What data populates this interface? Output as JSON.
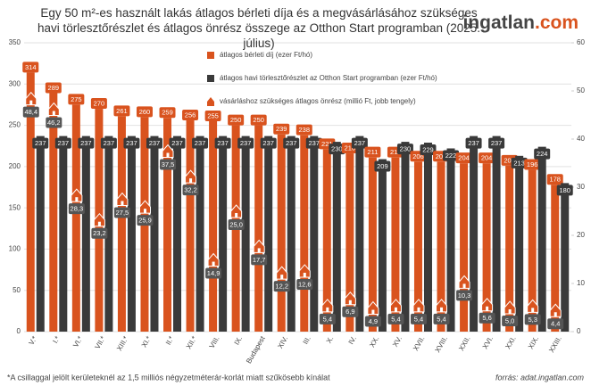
{
  "chart_data": {
    "type": "bar",
    "title": "Egy 50 m²-es használt lakás átlagos bérleti díja és a megvásárlásához szükséges havi törlesztőrészlet és átlagos önrész összege az Otthon Start programban (2025. július)",
    "logo": "ingatlan",
    "logo_suffix": ".com",
    "categories": [
      "V.*",
      "I.*",
      "VI.*",
      "VII.*",
      "XIII.*",
      "XI.*",
      "II.*",
      "XII.*",
      "VIII.",
      "IX.",
      "Budapest",
      "XIV.",
      "III.",
      "X.",
      "IV.",
      "XX.",
      "XV.",
      "XVII.",
      "XVIII.",
      "XXII.",
      "XVI.",
      "XXI.",
      "XIX.",
      "XXIII."
    ],
    "series": [
      {
        "name": "átlagos bérleti díj (ezer Ft/hó)",
        "color": "#d9531e",
        "values": [
          314,
          289,
          275,
          270,
          261,
          260,
          259,
          256,
          255,
          250,
          250,
          239,
          238,
          221,
          216,
          211,
          211,
          206,
          206,
          204,
          204,
          201,
          196,
          178
        ]
      },
      {
        "name": "átlagos havi törlesztőrészlet az Otthon Start programban (ezer Ft/hó)",
        "color": "#3a3a3a",
        "values": [
          237,
          237,
          237,
          237,
          237,
          237,
          237,
          237,
          237,
          237,
          237,
          237,
          237,
          230,
          237,
          209,
          230,
          229,
          222,
          237,
          237,
          213,
          224,
          180
        ]
      },
      {
        "name": "vásárláshoz szükséges átlagos önrész (millió Ft, jobb tengely)",
        "color": "#d9531e",
        "axis": "y2",
        "values": [
          48.4,
          46.2,
          28.3,
          23.2,
          27.5,
          25.9,
          37.5,
          32.2,
          14.9,
          25.0,
          17.7,
          12.2,
          12.6,
          5.4,
          6.9,
          4.9,
          5.4,
          5.4,
          5.4,
          10.3,
          5.6,
          5.0,
          5.3,
          4.4
        ],
        "value_labels": [
          "48,4",
          "46,2",
          "28,3",
          "23,2",
          "27,5",
          "25,9",
          "37,5",
          "32,2",
          "14,9",
          "25,0",
          "17,7",
          "12,2",
          "12,6",
          "5,4",
          "6,9",
          "4,9",
          "5,4",
          "5,4",
          "5,4",
          "10,3",
          "5,6",
          "5,0",
          "5,3",
          "4,4"
        ]
      }
    ],
    "ylim": [
      0,
      350
    ],
    "yticks": [
      0,
      50,
      100,
      150,
      200,
      250,
      300,
      350
    ],
    "y2lim": [
      0,
      60
    ],
    "y2ticks": [
      0,
      10,
      20,
      30,
      40,
      50,
      60
    ],
    "grid": true,
    "footnote": "*A csillaggal jelölt kerületeknél az 1,5 milliós négyzetméterár-korlát miatt szűkösebb kínálat",
    "source": "forrás: adat.ingatlan.com"
  }
}
